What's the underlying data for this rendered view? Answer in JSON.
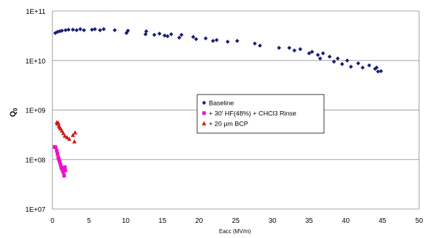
{
  "chart_data": {
    "type": "scatter",
    "xlabel": "Eacc (MV/m)",
    "ylabel": "Q",
    "ylabel_subscript": "0",
    "xlim": [
      0,
      50
    ],
    "ylim": [
      10000000,
      100000000000
    ],
    "yscale": "log",
    "x_ticks": [
      0,
      5,
      10,
      15,
      20,
      25,
      30,
      35,
      40,
      45,
      50
    ],
    "x_tick_labels": [
      "0",
      "5",
      "10",
      "15",
      "20",
      "25",
      "30",
      "35",
      "40",
      "45",
      "50"
    ],
    "y_ticks": [
      10000000,
      100000000,
      1000000000,
      10000000000,
      100000000000
    ],
    "y_tick_labels": [
      "1E+07",
      "1E+08",
      "1E+09",
      "1E+10",
      "1E+11"
    ],
    "grid": "horizontal",
    "legend_position": "center",
    "series": [
      {
        "name": "Baseline",
        "marker": "diamond",
        "color": "#1a1f7a",
        "points": [
          [
            0.4,
            36000000000.0
          ],
          [
            0.7,
            38000000000.0
          ],
          [
            1.0,
            39000000000.0
          ],
          [
            1.3,
            40000000000.0
          ],
          [
            1.8,
            41000000000.0
          ],
          [
            2.2,
            42000000000.0
          ],
          [
            2.8,
            42000000000.0
          ],
          [
            3.3,
            41000000000.0
          ],
          [
            3.8,
            43000000000.0
          ],
          [
            4.3,
            41000000000.0
          ],
          [
            5.4,
            42000000000.0
          ],
          [
            5.8,
            43000000000.0
          ],
          [
            6.5,
            41000000000.0
          ],
          [
            7.0,
            43000000000.0
          ],
          [
            8.5,
            41000000000.0
          ],
          [
            10.1,
            36000000000.0
          ],
          [
            10.3,
            40000000000.0
          ],
          [
            12.7,
            34000000000.0
          ],
          [
            12.8,
            39000000000.0
          ],
          [
            13.9,
            33000000000.0
          ],
          [
            14.6,
            35000000000.0
          ],
          [
            15.3,
            32000000000.0
          ],
          [
            15.7,
            31000000000.0
          ],
          [
            16.2,
            34000000000.0
          ],
          [
            17.3,
            29000000000.0
          ],
          [
            17.6,
            33000000000.0
          ],
          [
            19.2,
            30000000000.0
          ],
          [
            19.6,
            27000000000.0
          ],
          [
            20.9,
            28000000000.0
          ],
          [
            21.9,
            25000000000.0
          ],
          [
            22.4,
            26000000000.0
          ],
          [
            23.9,
            24000000000.0
          ],
          [
            25.2,
            25000000000.0
          ],
          [
            27.6,
            22000000000.0
          ],
          [
            28.3,
            20000000000.0
          ],
          [
            30.9,
            18000000000.0
          ],
          [
            32.3,
            18000000000.0
          ],
          [
            33.0,
            16000000000.0
          ],
          [
            33.8,
            17000000000.0
          ],
          [
            35.0,
            14000000000.0
          ],
          [
            35.4,
            15000000000.0
          ],
          [
            36.2,
            13000000000.0
          ],
          [
            36.5,
            11000000000.0
          ],
          [
            36.9,
            14000000000.0
          ],
          [
            37.8,
            12000000000.0
          ],
          [
            38.4,
            9500000000.0
          ],
          [
            38.9,
            11000000000.0
          ],
          [
            39.5,
            8500000000.0
          ],
          [
            40.2,
            10000000000.0
          ],
          [
            40.7,
            7500000000.0
          ],
          [
            41.7,
            8800000000.0
          ],
          [
            42.3,
            7200000000.0
          ],
          [
            43.2,
            8000000000.0
          ],
          [
            44.0,
            6800000000.0
          ],
          [
            44.2,
            7200000000.0
          ],
          [
            44.4,
            6000000000.0
          ],
          [
            44.8,
            6100000000.0
          ]
        ]
      },
      {
        "name": "+ 30' HF(48%) + CHCl3 Rinse",
        "marker": "square",
        "color": "#ee10cc",
        "points": [
          [
            0.3,
            180000000.0
          ],
          [
            0.45,
            175000000.0
          ],
          [
            0.6,
            150000000.0
          ],
          [
            0.7,
            130000000.0
          ],
          [
            0.8,
            110000000.0
          ],
          [
            0.9,
            100000000.0
          ],
          [
            1.0,
            90000000.0
          ],
          [
            1.1,
            80000000.0
          ],
          [
            1.2,
            70000000.0
          ],
          [
            1.3,
            65000000.0
          ],
          [
            1.4,
            60000000.0
          ],
          [
            1.5,
            55000000.0
          ],
          [
            1.6,
            47000000.0
          ],
          [
            1.7,
            70000000.0
          ],
          [
            1.75,
            60000000.0
          ]
        ]
      },
      {
        "name": "+ 20 µm BCP",
        "marker": "triangle",
        "color": "#cc1a1a",
        "points": [
          [
            0.6,
            560000000.0
          ],
          [
            0.7,
            530000000.0
          ],
          [
            0.8,
            550000000.0
          ],
          [
            0.9,
            480000000.0
          ],
          [
            1.0,
            450000000.0
          ],
          [
            1.1,
            420000000.0
          ],
          [
            1.3,
            380000000.0
          ],
          [
            1.5,
            340000000.0
          ],
          [
            1.7,
            300000000.0
          ],
          [
            2.0,
            280000000.0
          ],
          [
            2.3,
            260000000.0
          ],
          [
            2.8,
            310000000.0
          ],
          [
            3.0,
            230000000.0
          ],
          [
            3.1,
            350000000.0
          ]
        ]
      }
    ]
  }
}
